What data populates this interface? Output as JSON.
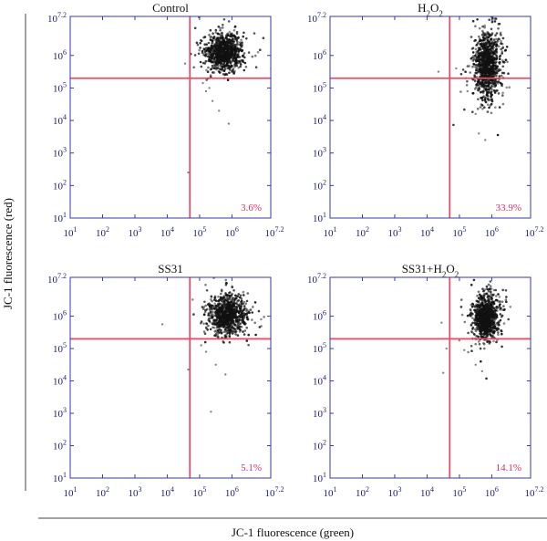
{
  "figure": {
    "ylabel": "JC-1 fluorescence (red)",
    "xlabel": "JC-1 fluorescence (green)"
  },
  "colors": {
    "frame": "#3a3aa8",
    "gate": "#e0506a",
    "dots": "#111111",
    "percent": "#d0306a",
    "ticks": "#1a1a7a"
  },
  "chart_data": [
    {
      "type": "scatter",
      "title": "Control",
      "title_parts": [
        {
          "t": "Control"
        }
      ],
      "xlim": [
        1,
        7.2
      ],
      "ylim": [
        1,
        7.2
      ],
      "xscale": "log10",
      "yscale": "log10",
      "x_gate": 4.7,
      "y_gate": 5.3,
      "lower_right_percent": "3.6%",
      "cluster": {
        "x_center": 5.75,
        "y_center": 6.1,
        "x_spread": 0.28,
        "y_spread": 0.28,
        "n": 900
      },
      "outliers": [
        [
          4.55,
          5.75
        ],
        [
          4.65,
          2.4
        ],
        [
          5.1,
          5.15
        ],
        [
          5.2,
          4.9
        ],
        [
          5.4,
          4.6
        ],
        [
          5.6,
          4.3
        ],
        [
          5.9,
          3.9
        ],
        [
          5.3,
          5.0
        ]
      ]
    },
    {
      "type": "scatter",
      "title": "H2O2",
      "title_parts": [
        {
          "t": "H"
        },
        {
          "t": "2",
          "sub": true
        },
        {
          "t": "O"
        },
        {
          "t": "2",
          "sub": true
        }
      ],
      "xlim": [
        1,
        7.2
      ],
      "ylim": [
        1,
        7.2
      ],
      "xscale": "log10",
      "yscale": "log10",
      "x_gate": 4.7,
      "y_gate": 5.3,
      "lower_right_percent": "33.9%",
      "cluster": {
        "x_center": 5.85,
        "y_center": 5.7,
        "x_spread": 0.2,
        "y_spread": 0.5,
        "n": 950
      },
      "outliers": [
        [
          4.35,
          5.5
        ],
        [
          4.9,
          5.6
        ],
        [
          5.25,
          4.9
        ],
        [
          5.5,
          4.2
        ],
        [
          5.6,
          3.6
        ],
        [
          5.8,
          3.4
        ],
        [
          5.2,
          5.3
        ]
      ]
    },
    {
      "type": "scatter",
      "title": "SS31",
      "title_parts": [
        {
          "t": "SS31"
        }
      ],
      "xlim": [
        1,
        7.2
      ],
      "ylim": [
        1,
        7.2
      ],
      "xscale": "log10",
      "yscale": "log10",
      "x_gate": 4.7,
      "y_gate": 5.3,
      "lower_right_percent": "5.1%",
      "cluster": {
        "x_center": 5.85,
        "y_center": 6.05,
        "x_spread": 0.3,
        "y_spread": 0.3,
        "n": 850
      },
      "outliers": [
        [
          3.85,
          5.75
        ],
        [
          4.65,
          4.35
        ],
        [
          5.35,
          3.05
        ],
        [
          5.2,
          4.9
        ],
        [
          5.5,
          4.5
        ],
        [
          5.8,
          4.2
        ],
        [
          6.9,
          5.9
        ],
        [
          5.05,
          5.1
        ]
      ]
    },
    {
      "type": "scatter",
      "title": "SS31+H2O2",
      "title_parts": [
        {
          "t": "SS31+H"
        },
        {
          "t": "2",
          "sub": true
        },
        {
          "t": "O"
        },
        {
          "t": "2",
          "sub": true
        }
      ],
      "xlim": [
        1,
        7.2
      ],
      "ylim": [
        1,
        7.2
      ],
      "xscale": "log10",
      "yscale": "log10",
      "x_gate": 4.7,
      "y_gate": 5.3,
      "lower_right_percent": "14.1%",
      "cluster": {
        "x_center": 5.8,
        "y_center": 5.95,
        "x_spread": 0.2,
        "y_spread": 0.35,
        "n": 900
      },
      "outliers": [
        [
          4.45,
          5.8
        ],
        [
          4.5,
          4.25
        ],
        [
          5.15,
          4.95
        ],
        [
          5.0,
          5.25
        ],
        [
          5.5,
          4.5
        ],
        [
          5.7,
          4.3
        ],
        [
          4.6,
          5.0
        ]
      ]
    }
  ]
}
